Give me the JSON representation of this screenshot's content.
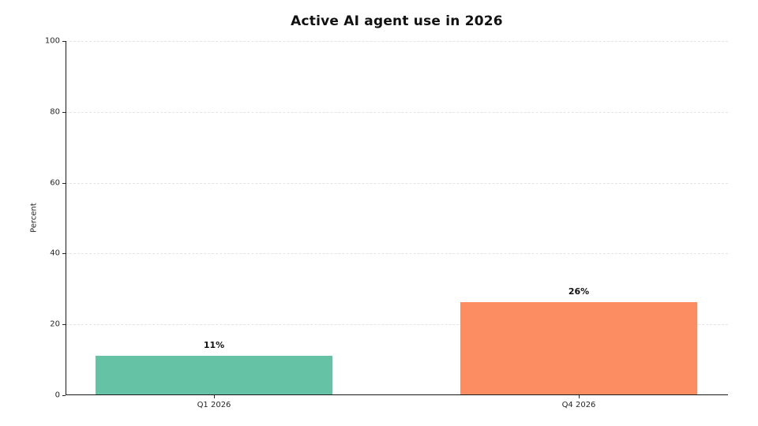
{
  "chart_data": {
    "type": "bar",
    "title": "Active AI agent use in 2026",
    "categories": [
      "Q1 2026",
      "Q4 2026"
    ],
    "values": [
      11,
      26
    ],
    "data_labels": [
      "11%",
      "26%"
    ],
    "bar_colors": [
      "#66c2a5",
      "#fc8d62"
    ],
    "xlabel": "",
    "ylabel": "Percent",
    "ylim": [
      0,
      100
    ],
    "yticks": [
      0,
      20,
      40,
      60,
      80,
      100
    ],
    "grid": "horizontal-dashed",
    "legend": "none"
  }
}
